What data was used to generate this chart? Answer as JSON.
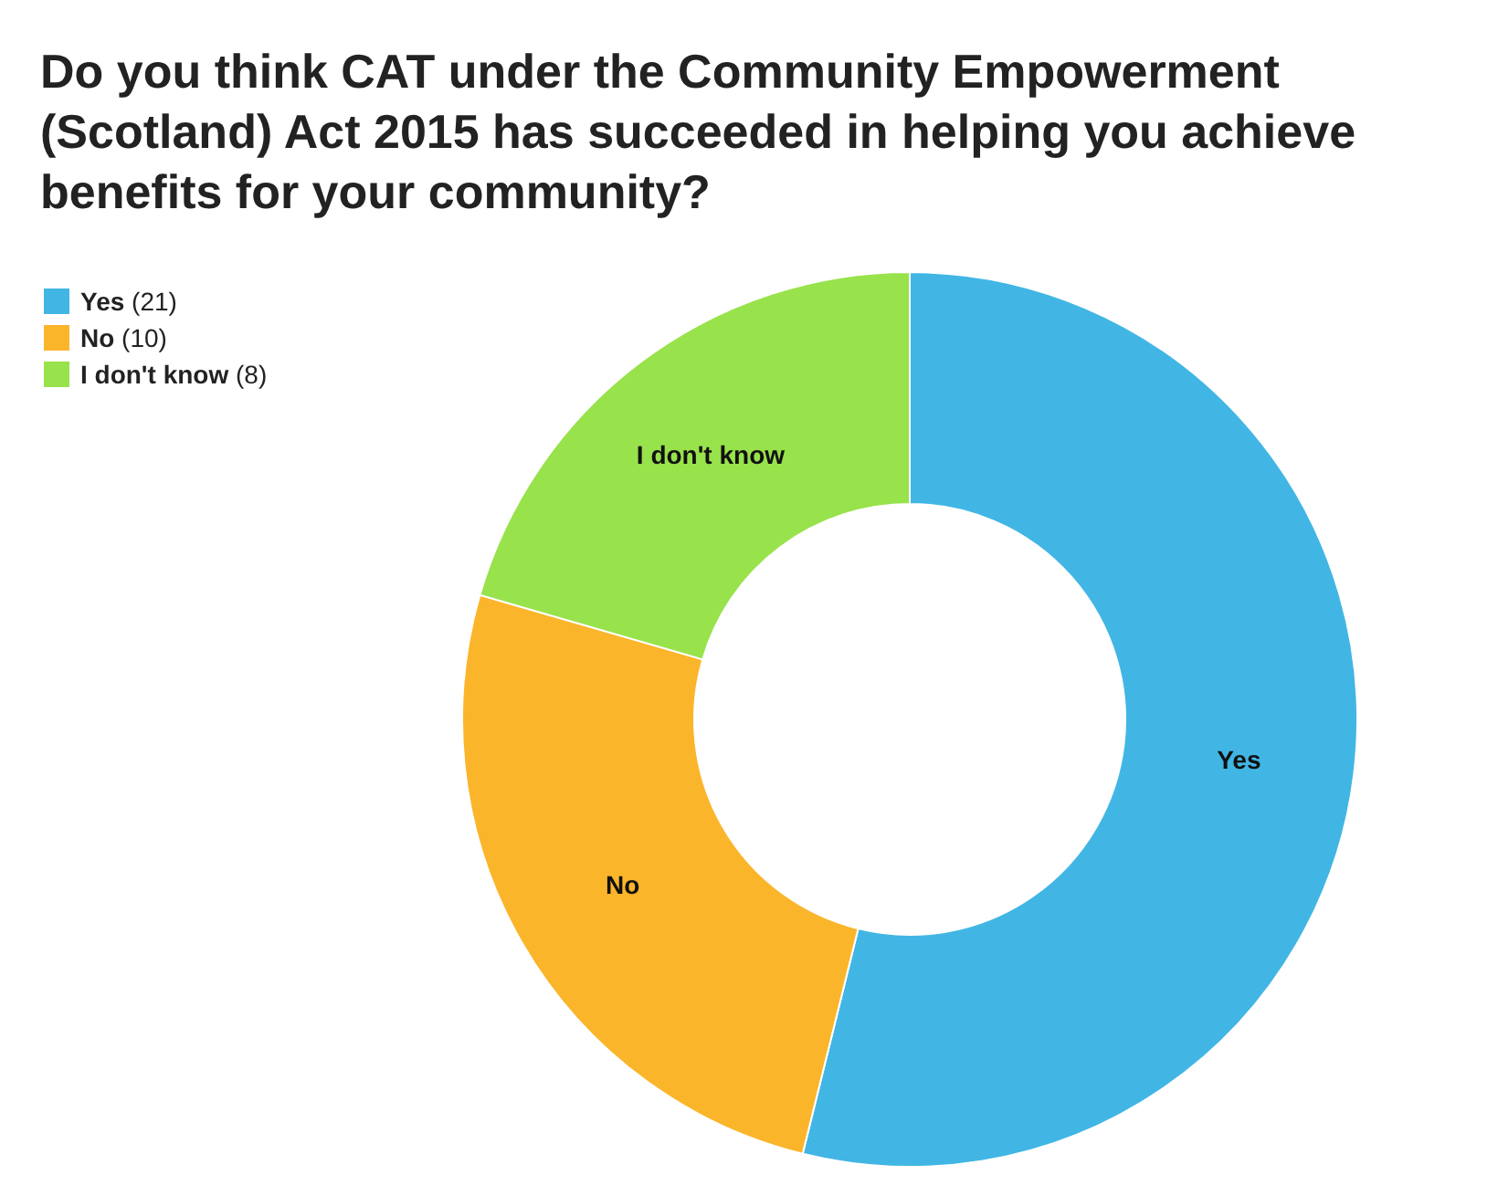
{
  "chart_data": {
    "type": "donut",
    "title": "Do you think CAT under the Community Empowerment (Scotland) Act 2015 has succeeded in helping you achieve benefits for your community?",
    "categories": [
      "Yes",
      "No",
      "I don't know"
    ],
    "values": [
      21,
      10,
      8
    ],
    "value_labels": [
      "(21)",
      "(10)",
      "(8)"
    ],
    "colors": [
      "#41b6e4",
      "#fbb52b",
      "#98e24b"
    ],
    "legend": "top left"
  }
}
